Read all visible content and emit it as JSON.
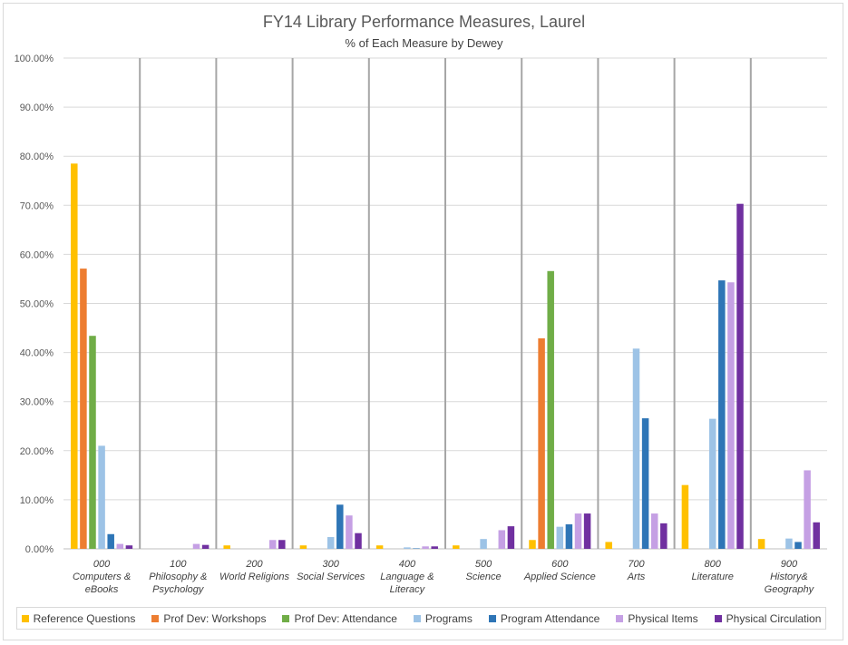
{
  "chart_data": {
    "type": "bar",
    "title": "FY14 Library Performance Measures, Laurel",
    "subtitle": "% of Each Measure by Dewey",
    "ylim": [
      0,
      100
    ],
    "y_ticks": [
      "0.00%",
      "10.00%",
      "20.00%",
      "30.00%",
      "40.00%",
      "50.00%",
      "60.00%",
      "70.00%",
      "80.00%",
      "90.00%",
      "100.00%"
    ],
    "grid": true,
    "legend_position": "bottom",
    "categories": [
      [
        "000",
        "Computers &",
        "eBooks"
      ],
      [
        "100",
        "Philosophy &",
        "Psychology"
      ],
      [
        "200",
        "World Religions"
      ],
      [
        "300",
        "Social Services"
      ],
      [
        "400",
        "Language &",
        "Literacy"
      ],
      [
        "500",
        "Science"
      ],
      [
        "600",
        "Applied Science"
      ],
      [
        "700",
        "Arts"
      ],
      [
        "800",
        "Literature"
      ],
      [
        "900",
        "History&",
        "Geography"
      ]
    ],
    "series": [
      {
        "name": "Reference Questions",
        "color": "#ffc000",
        "values": [
          78.5,
          0,
          0.7,
          0.7,
          0.7,
          0.7,
          1.8,
          1.4,
          13.0,
          2.0
        ]
      },
      {
        "name": "Prof Dev: Workshops",
        "color": "#ed7d31",
        "values": [
          57.1,
          0,
          0,
          0,
          0,
          0,
          42.9,
          0,
          0,
          0
        ]
      },
      {
        "name": "Prof Dev: Attendance",
        "color": "#70ad47",
        "values": [
          43.4,
          0,
          0,
          0,
          0,
          0,
          56.6,
          0,
          0,
          0
        ]
      },
      {
        "name": "Programs",
        "color": "#9dc3e6",
        "values": [
          21.0,
          0,
          0,
          2.4,
          0.3,
          2.0,
          4.5,
          40.8,
          26.5,
          2.1
        ]
      },
      {
        "name": "Program Attendance",
        "color": "#2e75b6",
        "values": [
          3.0,
          0,
          0,
          9.0,
          0.1,
          0,
          5.0,
          26.6,
          54.7,
          1.4
        ]
      },
      {
        "name": "Physical Items",
        "color": "#c5a0e4",
        "values": [
          1.0,
          1.0,
          1.8,
          6.8,
          0.5,
          3.8,
          7.2,
          7.2,
          54.3,
          16.0
        ]
      },
      {
        "name": "Physical Circulation",
        "color": "#7030a0",
        "values": [
          0.7,
          0.8,
          1.8,
          3.2,
          0.5,
          4.6,
          7.2,
          5.2,
          70.3,
          5.4
        ]
      }
    ]
  }
}
